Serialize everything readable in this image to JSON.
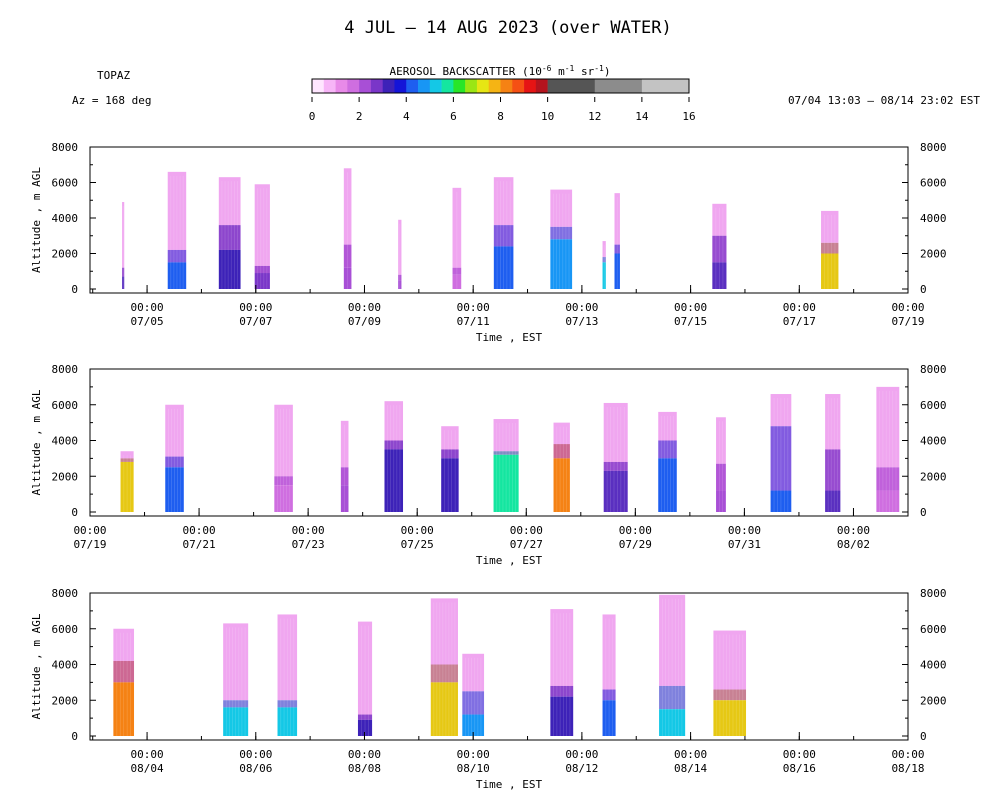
{
  "header": {
    "title": "4 JUL – 14 AUG 2023 (over WATER)",
    "instrument": "TOPAZ",
    "azimuth": "Az = 168 deg",
    "time_range": "07/04 13:03 – 08/14 23:02 EST"
  },
  "colorbar": {
    "label": "AEROSOL BACKSCATTER (10",
    "label_exp1": "-6",
    "label_unit_m": " m",
    "label_exp2": "-1",
    "label_unit_sr": " sr",
    "label_exp3": "-1",
    "label_close": ")",
    "ticks": [
      "0",
      "2",
      "4",
      "6",
      "8",
      "10",
      "12",
      "14",
      "16"
    ],
    "bins": [
      {
        "from": 0.0,
        "to": 0.5,
        "color": "#ffe6ff"
      },
      {
        "from": 0.5,
        "to": 1.0,
        "color": "#f7b5f7"
      },
      {
        "from": 1.0,
        "to": 1.5,
        "color": "#e88ae8"
      },
      {
        "from": 1.5,
        "to": 2.0,
        "color": "#cf6ee0"
      },
      {
        "from": 2.0,
        "to": 2.5,
        "color": "#a84fd6"
      },
      {
        "from": 2.5,
        "to": 3.0,
        "color": "#7a36c8"
      },
      {
        "from": 3.0,
        "to": 3.5,
        "color": "#3d22b8"
      },
      {
        "from": 3.5,
        "to": 4.0,
        "color": "#1414d8"
      },
      {
        "from": 4.0,
        "to": 4.5,
        "color": "#1e5ef0"
      },
      {
        "from": 4.5,
        "to": 5.0,
        "color": "#1896f5"
      },
      {
        "from": 5.0,
        "to": 5.5,
        "color": "#14c8e6"
      },
      {
        "from": 5.5,
        "to": 6.0,
        "color": "#14e6a0"
      },
      {
        "from": 6.0,
        "to": 6.5,
        "color": "#28e628"
      },
      {
        "from": 6.5,
        "to": 7.0,
        "color": "#9be614"
      },
      {
        "from": 7.0,
        "to": 7.5,
        "color": "#e6e614"
      },
      {
        "from": 7.5,
        "to": 8.0,
        "color": "#f5b414"
      },
      {
        "from": 8.0,
        "to": 8.5,
        "color": "#f58214"
      },
      {
        "from": 8.5,
        "to": 9.0,
        "color": "#f55014"
      },
      {
        "from": 9.0,
        "to": 9.5,
        "color": "#e61414"
      },
      {
        "from": 9.5,
        "to": 10.0,
        "color": "#b4141e"
      },
      {
        "from": 10.0,
        "to": 12.0,
        "color": "#555555"
      },
      {
        "from": 12.0,
        "to": 14.0,
        "color": "#8c8c8c"
      },
      {
        "from": 14.0,
        "to": 16.0,
        "color": "#c3c3c3"
      }
    ]
  },
  "chart_data": [
    {
      "type": "heatmap",
      "panel": 1,
      "xlabel": "Time , EST",
      "ylabel": "Altitude , m AGL",
      "ylim": [
        0,
        8000
      ],
      "y_ticks": [
        "0",
        "2000",
        "4000",
        "6000",
        "8000"
      ],
      "x_ticks": [
        {
          "day": 1,
          "label1": "00:00",
          "label2": "07/05"
        },
        {
          "day": 3,
          "label1": "00:00",
          "label2": "07/07"
        },
        {
          "day": 5,
          "label1": "00:00",
          "label2": "07/09"
        },
        {
          "day": 7,
          "label1": "00:00",
          "label2": "07/11"
        },
        {
          "day": 9,
          "label1": "00:00",
          "label2": "07/13"
        },
        {
          "day": 11,
          "label1": "00:00",
          "label2": "07/15"
        },
        {
          "day": 13,
          "label1": "00:00",
          "label2": "07/17"
        },
        {
          "day": 15,
          "label1": "00:00",
          "label2": "07/19"
        }
      ],
      "xlim_days": [
        -0.05,
        15
      ],
      "segments": [
        {
          "start": 0.54,
          "end": 0.58,
          "top": 4900,
          "low": 1200,
          "low_color": "#5a2fc0",
          "bl": 700
        },
        {
          "start": 1.38,
          "end": 1.72,
          "top": 6600,
          "low": 2200,
          "low_color": "#1e5ef0",
          "bl": 1500
        },
        {
          "start": 2.32,
          "end": 2.72,
          "top": 6300,
          "low": 3600,
          "low_color": "#3d22b8",
          "bl": 2200
        },
        {
          "start": 2.98,
          "end": 3.26,
          "top": 5900,
          "low": 1300,
          "low_color": "#7a36c8",
          "bl": 900
        },
        {
          "start": 4.62,
          "end": 4.76,
          "top": 6800,
          "low": 2500,
          "low_color": "#a84fd6",
          "bl": 1200
        },
        {
          "start": 5.62,
          "end": 5.68,
          "top": 3900,
          "low": 800,
          "low_color": "#a84fd6",
          "bl": 500
        },
        {
          "start": 6.62,
          "end": 6.78,
          "top": 5700,
          "low": 1200,
          "low_color": "#cf6ee0",
          "bl": 800
        },
        {
          "start": 7.38,
          "end": 7.74,
          "top": 6300,
          "low": 3600,
          "low_color": "#1e5ef0",
          "bl": 2400
        },
        {
          "start": 8.42,
          "end": 8.82,
          "top": 5600,
          "low": 3500,
          "low_color": "#1896f5",
          "bl": 2800
        },
        {
          "start": 9.38,
          "end": 9.44,
          "top": 2700,
          "low": 1800,
          "low_color": "#14c8e6",
          "bl": 1500
        },
        {
          "start": 9.6,
          "end": 9.7,
          "top": 5400,
          "low": 2500,
          "low_color": "#1e5ef0",
          "bl": 2000
        },
        {
          "start": 11.4,
          "end": 11.66,
          "top": 4800,
          "low": 3000,
          "low_color": "#5a2fc0",
          "bl": 1500
        },
        {
          "start": 13.4,
          "end": 13.72,
          "top": 4400,
          "low": 2600,
          "low_color": "#e6c814",
          "bl": 2000
        }
      ]
    },
    {
      "type": "heatmap",
      "panel": 2,
      "xlabel": "Time , EST",
      "ylabel": "Altitude , m AGL",
      "ylim": [
        0,
        8000
      ],
      "y_ticks": [
        "0",
        "2000",
        "4000",
        "6000",
        "8000"
      ],
      "x_ticks": [
        {
          "day": 0,
          "label1": "00:00",
          "label2": "07/19"
        },
        {
          "day": 2,
          "label1": "00:00",
          "label2": "07/21"
        },
        {
          "day": 4,
          "label1": "00:00",
          "label2": "07/23"
        },
        {
          "day": 6,
          "label1": "00:00",
          "label2": "07/25"
        },
        {
          "day": 8,
          "label1": "00:00",
          "label2": "07/27"
        },
        {
          "day": 10,
          "label1": "00:00",
          "label2": "07/29"
        },
        {
          "day": 12,
          "label1": "00:00",
          "label2": "07/31"
        },
        {
          "day": 14,
          "label1": "00:00",
          "label2": "08/02"
        }
      ],
      "xlim_days": [
        0,
        15
      ],
      "segments": [
        {
          "start": 0.56,
          "end": 0.8,
          "top": 3400,
          "low": 3000,
          "low_color": "#e6c814",
          "bl": 2800
        },
        {
          "start": 1.38,
          "end": 1.72,
          "top": 6000,
          "low": 3100,
          "low_color": "#1e5ef0",
          "bl": 2500
        },
        {
          "start": 3.38,
          "end": 3.72,
          "top": 6000,
          "low": 2000,
          "low_color": "#cf6ee0",
          "bl": 1500
        },
        {
          "start": 4.6,
          "end": 4.74,
          "top": 5100,
          "low": 2500,
          "low_color": "#a84fd6",
          "bl": 1500
        },
        {
          "start": 5.4,
          "end": 5.74,
          "top": 6200,
          "low": 4000,
          "low_color": "#3d22b8",
          "bl": 3500
        },
        {
          "start": 6.44,
          "end": 6.76,
          "top": 4800,
          "low": 3500,
          "low_color": "#3d22b8",
          "bl": 3000
        },
        {
          "start": 7.4,
          "end": 7.86,
          "top": 5200,
          "low": 3400,
          "low_color": "#14e6a0",
          "bl": 3200
        },
        {
          "start": 8.5,
          "end": 8.8,
          "top": 5000,
          "low": 3800,
          "low_color": "#f58214",
          "bl": 3000
        },
        {
          "start": 9.42,
          "end": 9.86,
          "top": 6100,
          "low": 2800,
          "low_color": "#5a2fc0",
          "bl": 2300
        },
        {
          "start": 10.42,
          "end": 10.76,
          "top": 5600,
          "low": 4000,
          "low_color": "#1e5ef0",
          "bl": 3000
        },
        {
          "start": 11.48,
          "end": 11.66,
          "top": 5300,
          "low": 2700,
          "low_color": "#a84fd6",
          "bl": 1200
        },
        {
          "start": 12.48,
          "end": 12.86,
          "top": 6600,
          "low": 4800,
          "low_color": "#1e5ef0",
          "bl": 1200
        },
        {
          "start": 13.48,
          "end": 13.76,
          "top": 6600,
          "low": 3500,
          "low_color": "#5a2fc0",
          "bl": 1200
        },
        {
          "start": 14.42,
          "end": 14.84,
          "top": 7000,
          "low": 2500,
          "low_color": "#cf6ee0",
          "bl": 1200
        }
      ]
    },
    {
      "type": "heatmap",
      "panel": 3,
      "xlabel": "Time , EST",
      "ylabel": "Altitude , m AGL",
      "ylim": [
        0,
        8000
      ],
      "y_ticks": [
        "0",
        "2000",
        "4000",
        "6000",
        "8000"
      ],
      "x_ticks": [
        {
          "day": 1,
          "label1": "00:00",
          "label2": "08/04"
        },
        {
          "day": 3,
          "label1": "00:00",
          "label2": "08/06"
        },
        {
          "day": 5,
          "label1": "00:00",
          "label2": "08/08"
        },
        {
          "day": 7,
          "label1": "00:00",
          "label2": "08/10"
        },
        {
          "day": 9,
          "label1": "00:00",
          "label2": "08/12"
        },
        {
          "day": 11,
          "label1": "00:00",
          "label2": "08/14"
        },
        {
          "day": 13,
          "label1": "00:00",
          "label2": "08/16"
        },
        {
          "day": 15,
          "label1": "00:00",
          "label2": "08/18"
        }
      ],
      "xlim_days": [
        -0.05,
        15
      ],
      "segments": [
        {
          "start": 0.38,
          "end": 0.76,
          "top": 6000,
          "low": 4200,
          "low_color": "#f58214",
          "bl": 3000
        },
        {
          "start": 2.4,
          "end": 2.86,
          "top": 6300,
          "low": 2000,
          "low_color": "#14c8e6",
          "bl": 1600
        },
        {
          "start": 3.4,
          "end": 3.76,
          "top": 6800,
          "low": 2000,
          "low_color": "#14c8e6",
          "bl": 1600
        },
        {
          "start": 4.88,
          "end": 5.14,
          "top": 6400,
          "low": 1200,
          "low_color": "#3d22b8",
          "bl": 900
        },
        {
          "start": 6.22,
          "end": 6.72,
          "top": 7700,
          "low": 4000,
          "low_color": "#e6c814",
          "bl": 3000
        },
        {
          "start": 6.8,
          "end": 7.2,
          "top": 4600,
          "low": 2500,
          "low_color": "#1896f5",
          "bl": 1200
        },
        {
          "start": 8.42,
          "end": 8.84,
          "top": 7100,
          "low": 2800,
          "low_color": "#3d22b8",
          "bl": 2200
        },
        {
          "start": 9.38,
          "end": 9.62,
          "top": 6800,
          "low": 2600,
          "low_color": "#1e5ef0",
          "bl": 2000
        },
        {
          "start": 10.42,
          "end": 10.9,
          "top": 7900,
          "low": 2800,
          "low_color": "#14c8e6",
          "bl": 1500
        },
        {
          "start": 11.42,
          "end": 12.02,
          "top": 5900,
          "low": 2600,
          "low_color": "#e6c814",
          "bl": 2000
        }
      ]
    }
  ]
}
